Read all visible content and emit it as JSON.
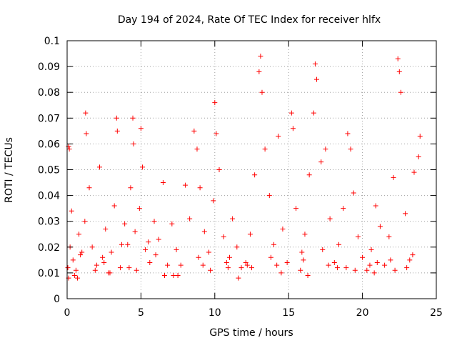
{
  "chart_data": {
    "type": "scatter",
    "title": "Day 194 of 2024, Rate Of TEC Index for receiver hlfx",
    "xlabel": "GPS time / hours",
    "ylabel": "ROTI / TECUs",
    "xlim": [
      0,
      25
    ],
    "ylim": [
      0,
      0.1
    ],
    "x_ticks": [
      0,
      5,
      10,
      15,
      20,
      25
    ],
    "x_tick_labels": [
      "0",
      "5",
      "10",
      "15",
      "20",
      "25"
    ],
    "y_ticks": [
      0,
      0.01,
      0.02,
      0.03,
      0.04,
      0.05,
      0.06,
      0.07,
      0.08,
      0.09,
      0.1
    ],
    "y_tick_labels": [
      "0",
      "0.01",
      "0.02",
      "0.03",
      "0.04",
      "0.05",
      "0.06",
      "0.07",
      "0.08",
      "0.09",
      "0.1"
    ],
    "grid": true,
    "marker": "+",
    "color": "#ff0000",
    "series": [
      {
        "name": "ROTI",
        "x": [
          0.05,
          0.1,
          0.15,
          0.2,
          0.1,
          0.3,
          0.4,
          0.6,
          0.8,
          1.0,
          1.2,
          1.25,
          1.3,
          1.5,
          1.7,
          2.0,
          2.2,
          2.4,
          2.6,
          2.8,
          3.0,
          3.2,
          3.35,
          3.4,
          3.6,
          3.9,
          4.1,
          4.3,
          4.45,
          4.5,
          4.6,
          4.9,
          5.0,
          5.1,
          5.3,
          5.6,
          5.9,
          6.2,
          6.5,
          6.8,
          7.1,
          7.4,
          7.7,
          8.0,
          8.3,
          8.6,
          8.8,
          9.0,
          9.3,
          9.6,
          9.9,
          10.0,
          10.1,
          10.3,
          10.6,
          10.9,
          11.2,
          11.5,
          11.8,
          12.1,
          12.4,
          12.7,
          13.0,
          13.1,
          13.2,
          13.4,
          13.7,
          14.0,
          14.3,
          14.6,
          14.9,
          15.2,
          15.3,
          15.5,
          15.8,
          16.1,
          16.4,
          16.7,
          16.8,
          16.9,
          17.2,
          17.5,
          17.8,
          18.1,
          18.4,
          18.7,
          19.0,
          19.2,
          19.4,
          19.7,
          20.0,
          20.3,
          20.6,
          20.9,
          21.2,
          21.5,
          21.8,
          22.1,
          22.4,
          22.5,
          22.6,
          22.9,
          23.2,
          23.5,
          23.8,
          23.9,
          0.5,
          2.5,
          4.7,
          6.0,
          7.5,
          9.2,
          11.0,
          12.5,
          14.5,
          16.0,
          17.7,
          19.5,
          21.0,
          23.0,
          0.9,
          3.7,
          6.6,
          8.9,
          12.2,
          15.9,
          18.9,
          21.9,
          1.9,
          5.5,
          10.8,
          13.8,
          17.3,
          20.5,
          23.4,
          0.7,
          2.9,
          4.2,
          7.2,
          9.7,
          11.6,
          14.2,
          16.3,
          18.3,
          20.8,
          22.2
        ],
        "y": [
          0.012,
          0.059,
          0.058,
          0.02,
          0.008,
          0.034,
          0.015,
          0.011,
          0.025,
          0.018,
          0.03,
          0.072,
          0.064,
          0.043,
          0.02,
          0.013,
          0.051,
          0.016,
          0.027,
          0.01,
          0.018,
          0.036,
          0.07,
          0.065,
          0.012,
          0.029,
          0.021,
          0.043,
          0.07,
          0.06,
          0.026,
          0.035,
          0.066,
          0.051,
          0.019,
          0.014,
          0.03,
          0.023,
          0.045,
          0.013,
          0.029,
          0.019,
          0.013,
          0.044,
          0.031,
          0.065,
          0.058,
          0.043,
          0.026,
          0.018,
          0.038,
          0.076,
          0.064,
          0.05,
          0.024,
          0.012,
          0.031,
          0.02,
          0.012,
          0.014,
          0.025,
          0.048,
          0.088,
          0.094,
          0.08,
          0.058,
          0.04,
          0.021,
          0.063,
          0.027,
          0.014,
          0.072,
          0.066,
          0.035,
          0.011,
          0.025,
          0.048,
          0.072,
          0.091,
          0.085,
          0.053,
          0.058,
          0.031,
          0.014,
          0.021,
          0.035,
          0.064,
          0.058,
          0.041,
          0.024,
          0.016,
          0.011,
          0.019,
          0.036,
          0.028,
          0.013,
          0.024,
          0.047,
          0.093,
          0.088,
          0.08,
          0.033,
          0.015,
          0.049,
          0.055,
          0.063,
          0.009,
          0.014,
          0.011,
          0.017,
          0.009,
          0.013,
          0.016,
          0.012,
          0.01,
          0.015,
          0.013,
          0.011,
          0.014,
          0.012,
          0.017,
          0.021,
          0.009,
          0.016,
          0.013,
          0.018,
          0.012,
          0.015,
          0.011,
          0.022,
          0.014,
          0.016,
          0.019,
          0.013,
          0.017,
          0.008,
          0.01,
          0.012,
          0.009,
          0.011,
          0.008,
          0.013,
          0.009,
          0.012,
          0.01,
          0.011
        ]
      }
    ]
  }
}
